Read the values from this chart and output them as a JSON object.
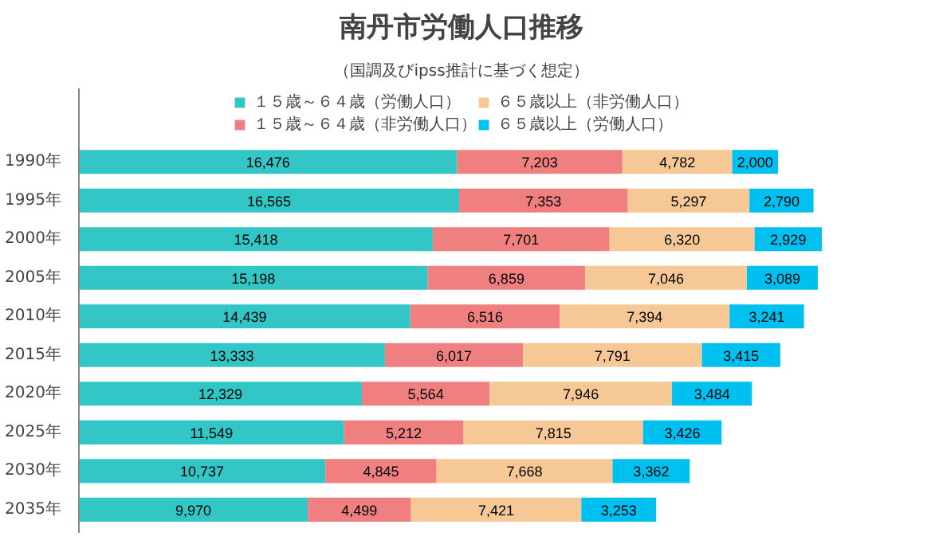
{
  "chart_data": {
    "type": "bar",
    "orientation": "horizontal",
    "stacked": true,
    "legend": "top",
    "grid": false,
    "title": "南丹市労働人口推移",
    "subtitle": "（国調及びipss推計に基づく想定）",
    "categories": [
      "1990年",
      "1995年",
      "2000年",
      "2005年",
      "2010年",
      "2015年",
      "2020年",
      "2025年",
      "2030年",
      "2035年"
    ],
    "series": [
      {
        "name": "１５歳～６４歳（労働人口）",
        "color": "#33c6c6",
        "values": [
          16476,
          16565,
          15418,
          15198,
          14439,
          13333,
          12329,
          11549,
          10737,
          9970
        ],
        "value_labels": [
          "16,476",
          "16,565",
          "15,418",
          "15,198",
          "14,439",
          "13,333",
          "12,329",
          "11,549",
          "10,737",
          "9,970"
        ]
      },
      {
        "name": "１５歳～６４歳（非労働人口）",
        "color": "#f08080",
        "values": [
          7203,
          7353,
          7701,
          6859,
          6516,
          6017,
          5564,
          5212,
          4845,
          4499
        ],
        "value_labels": [
          "7,203",
          "7,353",
          "7,701",
          "6,859",
          "6,516",
          "6,017",
          "5,564",
          "5,212",
          "4,845",
          "4,499"
        ]
      },
      {
        "name": "６５歳以上（非労働人口）",
        "color": "#f5c896",
        "values": [
          4782,
          5297,
          6320,
          7046,
          7394,
          7791,
          7946,
          7815,
          7668,
          7421
        ],
        "value_labels": [
          "4,782",
          "5,297",
          "6,320",
          "7,046",
          "7,394",
          "7,791",
          "7,946",
          "7,815",
          "7,668",
          "7,421"
        ]
      },
      {
        "name": "６５歳以上（労働人口）",
        "color": "#00c0f0",
        "values": [
          2000,
          2790,
          2929,
          3089,
          3241,
          3415,
          3484,
          3426,
          3362,
          3253
        ],
        "value_labels": [
          "2,000",
          "2,790",
          "2,929",
          "3,089",
          "3,241",
          "3,415",
          "3,484",
          "3,426",
          "3,362",
          "3,253"
        ]
      }
    ]
  }
}
